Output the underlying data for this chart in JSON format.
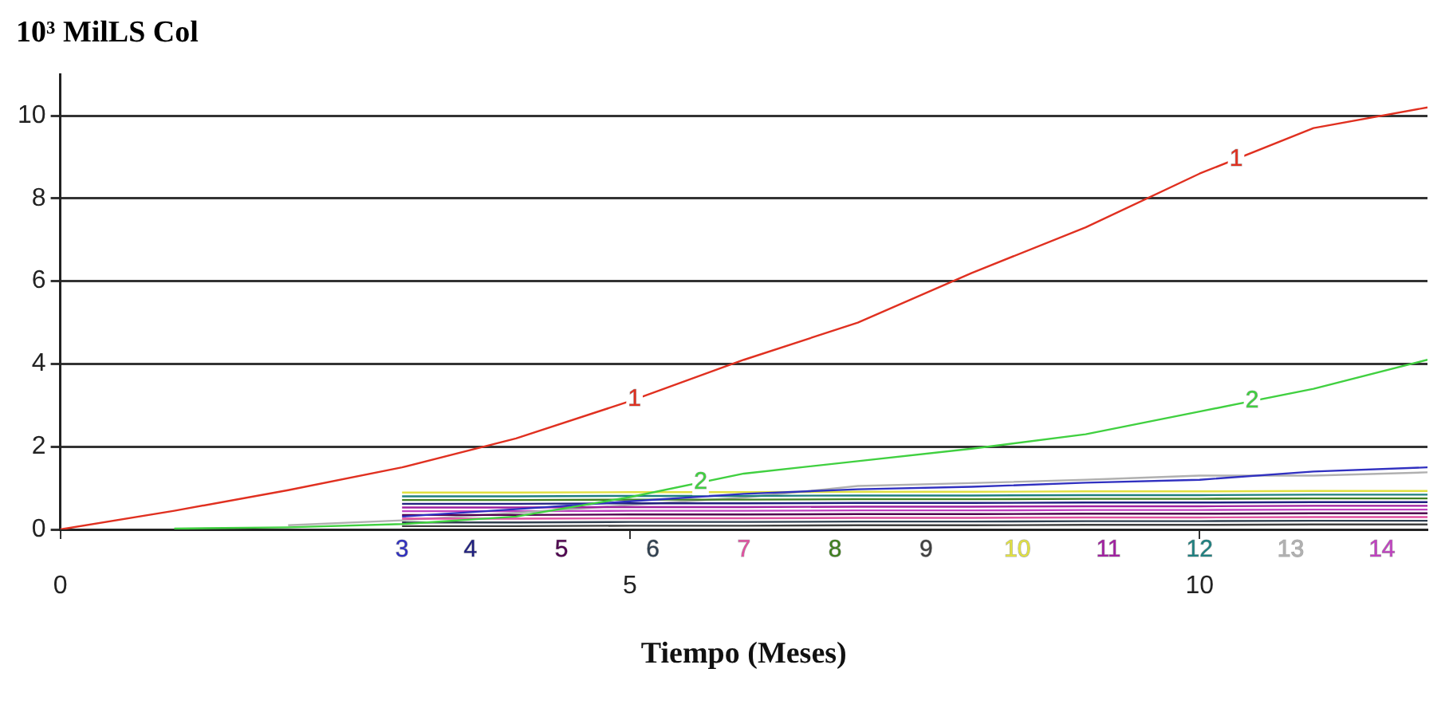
{
  "chart_data": {
    "type": "line",
    "ylabel": "10³ MilLS Col",
    "xlabel": "Tiempo (Meses)",
    "x": [
      0,
      1,
      2,
      3,
      4,
      5,
      6,
      7,
      8,
      9,
      10,
      11,
      12
    ],
    "xlim": [
      0,
      12
    ],
    "xticks": [
      0,
      5,
      10
    ],
    "ylim": [
      0,
      11
    ],
    "yticks": [
      0,
      2,
      4,
      6,
      8,
      10
    ],
    "grid": "y",
    "legend": false,
    "marker": "none",
    "line_style": "solid",
    "series": [
      {
        "name": "1",
        "color": "#e03020",
        "values": [
          0,
          0.45,
          0.95,
          1.5,
          2.2,
          3.1,
          4.1,
          5.0,
          6.2,
          7.3,
          8.6,
          9.7,
          10.2
        ]
      },
      {
        "name": "2",
        "color": "#40d040",
        "values": [
          null,
          0.02,
          0.05,
          0.13,
          0.31,
          0.78,
          1.35,
          1.65,
          1.95,
          2.3,
          2.85,
          3.4,
          4.1
        ]
      },
      {
        "name": "3",
        "color": "#3030c0",
        "values": [
          null,
          null,
          null,
          0.31,
          0.49,
          0.68,
          0.86,
          0.97,
          1.03,
          1.13,
          1.2,
          1.4,
          1.5
        ]
      },
      {
        "name": "4",
        "color": "#202080",
        "values": [
          null,
          null,
          null,
          0.62,
          0.62,
          0.63,
          0.63,
          0.64,
          0.64,
          0.65,
          0.65,
          0.66,
          0.66
        ]
      },
      {
        "name": "5",
        "color": "#500050",
        "values": [
          null,
          null,
          null,
          0.35,
          0.35,
          0.36,
          0.36,
          0.37,
          0.37,
          0.38,
          0.38,
          0.39,
          0.39
        ]
      },
      {
        "name": "6",
        "color": "#304050",
        "values": [
          null,
          null,
          null,
          0.17,
          0.17,
          0.18,
          0.18,
          0.19,
          0.19,
          0.2,
          0.2,
          0.21,
          0.21
        ]
      },
      {
        "name": "7",
        "color": "#e050a0",
        "values": [
          null,
          null,
          null,
          0.26,
          0.26,
          0.27,
          0.27,
          0.28,
          0.28,
          0.29,
          0.29,
          0.3,
          0.3
        ]
      },
      {
        "name": "8",
        "color": "#408020",
        "values": [
          null,
          null,
          null,
          0.71,
          0.71,
          0.72,
          0.72,
          0.73,
          0.73,
          0.74,
          0.74,
          0.75,
          0.75
        ]
      },
      {
        "name": "9",
        "color": "#404040",
        "values": [
          null,
          null,
          null,
          0.08,
          0.08,
          0.09,
          0.09,
          0.1,
          0.1,
          0.11,
          0.11,
          0.12,
          0.12
        ]
      },
      {
        "name": "10",
        "color": "#e0e040",
        "values": [
          null,
          null,
          null,
          0.89,
          0.89,
          0.9,
          0.9,
          0.91,
          0.91,
          0.92,
          0.92,
          0.93,
          0.93
        ]
      },
      {
        "name": "11",
        "color": "#a020a0",
        "values": [
          null,
          null,
          null,
          0.53,
          0.53,
          0.54,
          0.54,
          0.55,
          0.55,
          0.56,
          0.56,
          0.57,
          0.57
        ]
      },
      {
        "name": "12",
        "color": "#208080",
        "values": [
          null,
          null,
          null,
          0.8,
          0.8,
          0.81,
          0.81,
          0.82,
          0.82,
          0.83,
          0.83,
          0.84,
          0.84
        ]
      },
      {
        "name": "13",
        "color": "#b0b0b0",
        "values": [
          null,
          null,
          0.1,
          0.22,
          0.4,
          0.59,
          0.77,
          1.05,
          1.12,
          1.2,
          1.3,
          1.3,
          1.38
        ]
      },
      {
        "name": "14",
        "color": "#c040c0",
        "values": [
          null,
          null,
          null,
          0.44,
          0.44,
          0.45,
          0.45,
          0.46,
          0.46,
          0.47,
          0.47,
          0.48,
          0.48
        ]
      }
    ]
  }
}
